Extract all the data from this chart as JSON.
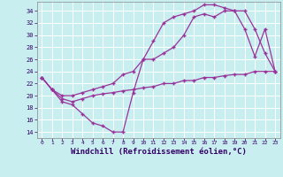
{
  "bg_color": "#c8eef0",
  "grid_color": "#b8dfe0",
  "line_color": "#993399",
  "marker": "+",
  "xlabel": "Windchill (Refroidissement éolien,°C)",
  "xlim": [
    -0.5,
    23.5
  ],
  "ylim": [
    13,
    35.5
  ],
  "xticks": [
    0,
    1,
    2,
    3,
    4,
    5,
    6,
    7,
    8,
    9,
    10,
    11,
    12,
    13,
    14,
    15,
    16,
    17,
    18,
    19,
    20,
    21,
    22,
    23
  ],
  "yticks": [
    14,
    16,
    18,
    20,
    22,
    24,
    26,
    28,
    30,
    32,
    34
  ],
  "line1_x": [
    0,
    1,
    2,
    3,
    4,
    5,
    6,
    7,
    8,
    9,
    10,
    11,
    12,
    13,
    14,
    15,
    16,
    17,
    18,
    19,
    20,
    21,
    22,
    23
  ],
  "line1_y": [
    23,
    21,
    19,
    18.5,
    17,
    15.5,
    15,
    14,
    14,
    20.5,
    26,
    29,
    32,
    33,
    33.5,
    34,
    35,
    35,
    34.5,
    34,
    31,
    26.5,
    31,
    24
  ],
  "line2_x": [
    0,
    1,
    2,
    3,
    4,
    5,
    6,
    7,
    8,
    9,
    10,
    11,
    12,
    13,
    14,
    15,
    16,
    17,
    18,
    19,
    20,
    21,
    22,
    23
  ],
  "line2_y": [
    23,
    21,
    20,
    20,
    20.5,
    21,
    21.5,
    22,
    23.5,
    24,
    26,
    26,
    27,
    28,
    30,
    33,
    33.5,
    33,
    34,
    34,
    34,
    31,
    27,
    24
  ],
  "line3_x": [
    0,
    1,
    2,
    3,
    4,
    5,
    6,
    7,
    8,
    9,
    10,
    11,
    12,
    13,
    14,
    15,
    16,
    17,
    18,
    19,
    20,
    21,
    22,
    23
  ],
  "line3_y": [
    23,
    21,
    19.5,
    19,
    19.5,
    20,
    20.3,
    20.5,
    20.8,
    21,
    21.3,
    21.5,
    22,
    22,
    22.5,
    22.5,
    23,
    23,
    23.3,
    23.5,
    23.5,
    24,
    24,
    24
  ]
}
